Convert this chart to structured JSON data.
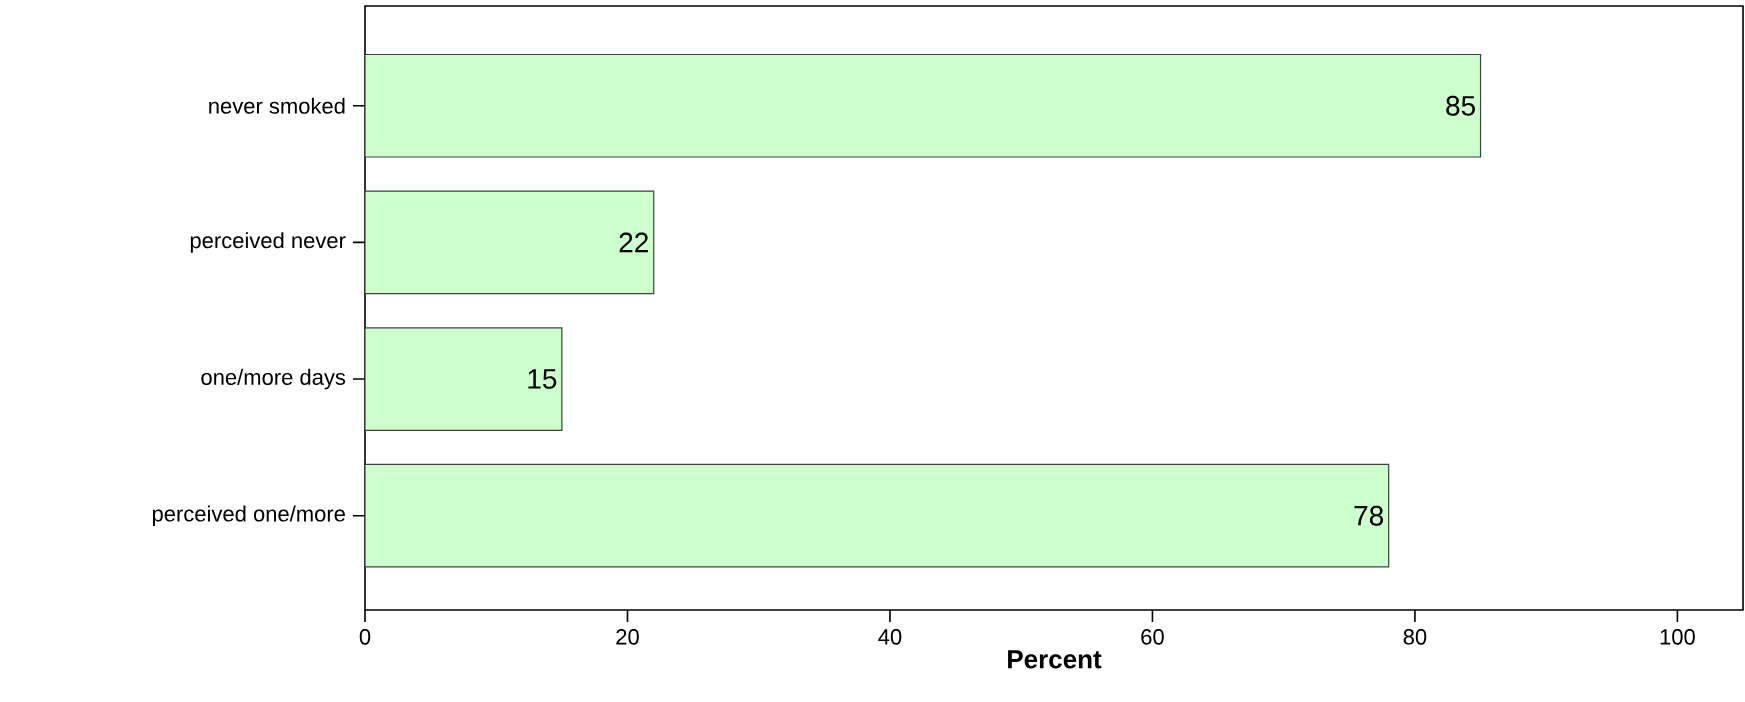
{
  "chart_data": {
    "type": "bar",
    "orientation": "horizontal",
    "xlabel": "Percent",
    "categories": [
      "never smoked",
      "perceived never",
      "one/more days",
      "perceived one/more"
    ],
    "values": [
      85,
      22,
      15,
      78
    ],
    "color": "#ccffcc",
    "xlim": [
      0,
      105
    ],
    "xticks": [
      0,
      20,
      40,
      60,
      80,
      100
    ],
    "data_labels": true
  }
}
